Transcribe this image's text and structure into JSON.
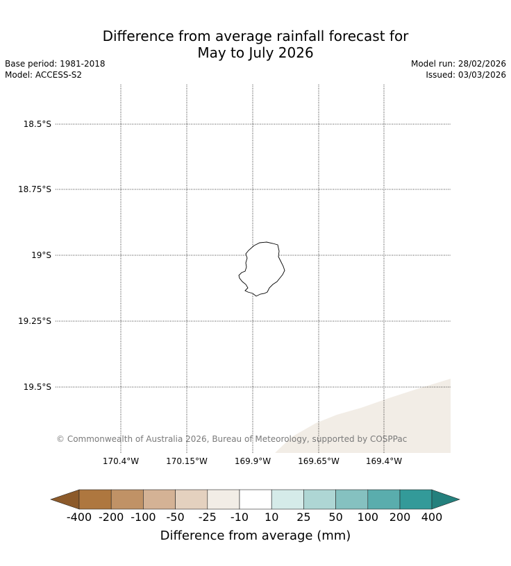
{
  "title": {
    "line1": "Difference from average rainfall forecast for",
    "line2": "May to July 2026"
  },
  "meta": {
    "base_period": "Base period: 1981-2018",
    "model": "Model: ACCESS-S2",
    "model_run": "Model run: 28/02/2026",
    "issued": "Issued: 03/03/2026"
  },
  "map": {
    "lat_labels": [
      "18.5°S",
      "18.75°S",
      "19°S",
      "19.25°S",
      "19.5°S"
    ],
    "lon_labels": [
      "170.4°W",
      "170.15°W",
      "169.9°W",
      "169.65°W",
      "169.4°W"
    ],
    "copyright": "© Commonwealth of Australia 2026, Bureau of Meteorology, supported by COSPPac",
    "shaded_region_color": "#f2ede6",
    "island_name": ""
  },
  "colorbar": {
    "title": "Difference from average (mm)",
    "ticks": [
      "-400",
      "-200",
      "-100",
      "-50",
      "-25",
      "-10",
      "10",
      "25",
      "50",
      "100",
      "200",
      "400"
    ],
    "colors": [
      "#8c5a2a",
      "#ae773f",
      "#c09266",
      "#d4b295",
      "#e4d1bf",
      "#f2ede6",
      "#ffffff",
      "#d5ebe9",
      "#aed6d4",
      "#85c1c0",
      "#5aadad",
      "#339a99",
      "#24807d"
    ]
  }
}
